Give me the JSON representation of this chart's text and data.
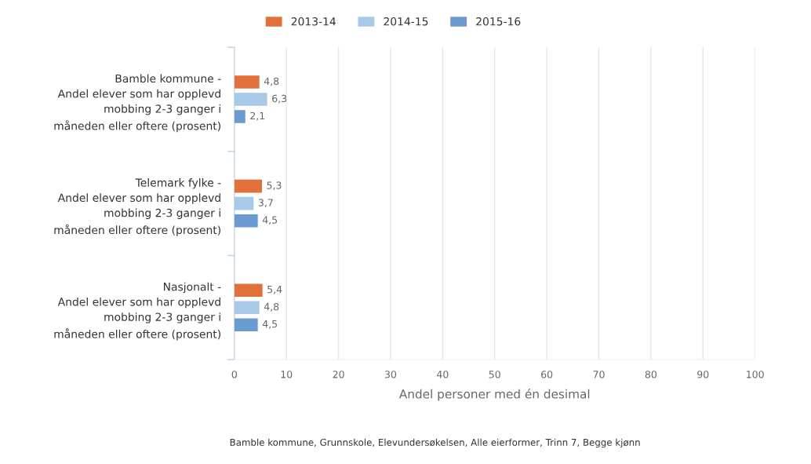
{
  "chart_data": {
    "type": "bar",
    "orientation": "horizontal",
    "categories": [
      "Bamble kommune -\nAndel elever som har opplevd\nmobbing 2-3 ganger i\nmåneden eller oftere (prosent)",
      "Telemark fylke -\nAndel elever som har opplevd\nmobbing 2-3 ganger i\nmåneden eller oftere (prosent)",
      "Nasjonalt -\nAndel elever som har opplevd\nmobbing 2-3 ganger i\nmåneden eller oftere (prosent)"
    ],
    "series": [
      {
        "name": "2013-14",
        "color": "#e2703a",
        "values": [
          4.8,
          5.3,
          5.4
        ],
        "value_labels": [
          "4,8",
          "5,3",
          "5,4"
        ]
      },
      {
        "name": "2014-15",
        "color": "#a9c9e8",
        "values": [
          6.3,
          3.7,
          4.8
        ],
        "value_labels": [
          "6,3",
          "3,7",
          "4,8"
        ]
      },
      {
        "name": "2015-16",
        "color": "#6a9ad0",
        "values": [
          2.1,
          4.5,
          4.5
        ],
        "value_labels": [
          "2,1",
          "4,5",
          "4,5"
        ]
      }
    ],
    "xlabel": "Andel personer med én desimal",
    "xlim": [
      0,
      100
    ],
    "xticks": [
      0,
      10,
      20,
      30,
      40,
      50,
      60,
      70,
      80,
      90,
      100
    ],
    "grid": "x",
    "legend": "top",
    "annotations": [
      "Bamble kommune, Grunnskole, Elevundersøkelsen, Alle eierformer, Trinn 7, Begge kjønn"
    ]
  }
}
